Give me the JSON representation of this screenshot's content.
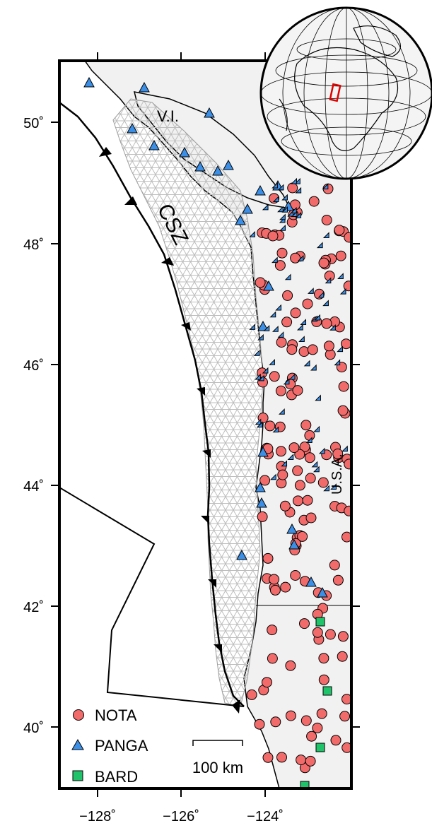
{
  "map": {
    "labels": {
      "island": "V.I.",
      "subduction_zone": "CSZ",
      "country": "U.S.A."
    },
    "lat_ticks": [
      "50˚",
      "48˚",
      "46˚",
      "44˚",
      "42˚",
      "40˚"
    ],
    "lon_ticks": [
      "−128˚",
      "−126˚",
      "−124˚"
    ],
    "scale_bar": {
      "label": "100 km"
    },
    "legend": [
      {
        "name": "NOTA",
        "symbol": "circle",
        "color": "#f26b6b"
      },
      {
        "name": "PANGA",
        "symbol": "triangle",
        "color": "#3c8fe6"
      },
      {
        "name": "BARD",
        "symbol": "square",
        "color": "#1fc46a"
      }
    ],
    "colors": {
      "land": "#f1f1f1",
      "ocean": "#ffffff",
      "mesh": "#bdbdbd",
      "inset_box": "#e00000"
    }
  }
}
